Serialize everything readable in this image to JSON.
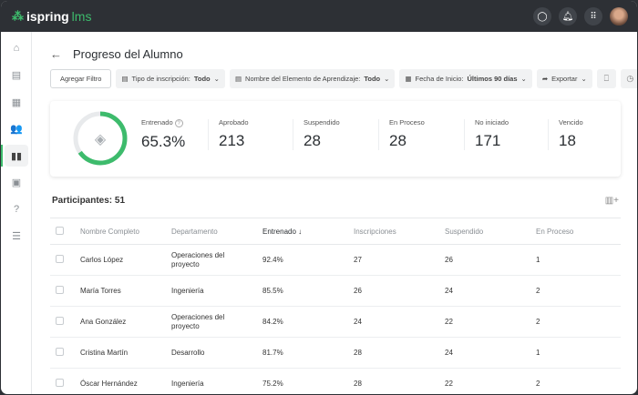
{
  "header": {
    "logo": "ispring",
    "logo_suffix": "lms",
    "icons": [
      "chat-icon",
      "bell-icon",
      "apps-grid-icon"
    ]
  },
  "sidebar": {
    "items": [
      {
        "icon": "home-icon",
        "glyph": "⌂"
      },
      {
        "icon": "book-icon",
        "glyph": "▤"
      },
      {
        "icon": "calendar-icon",
        "glyph": "▦"
      },
      {
        "icon": "users-icon",
        "glyph": "👥"
      },
      {
        "icon": "reports-icon",
        "glyph": "▮▮",
        "active": true
      },
      {
        "icon": "assignment-icon",
        "glyph": "▣"
      },
      {
        "icon": "help-icon",
        "glyph": "?"
      },
      {
        "icon": "settings-sliders-icon",
        "glyph": "☰"
      }
    ]
  },
  "page": {
    "title": "Progreso del Alumno"
  },
  "filters": {
    "add": "Agregar Filtro",
    "items": [
      {
        "label": "Tipo de inscripción:",
        "value": "Todo"
      },
      {
        "label": "Nombre del Elemento de Aprendizaje:",
        "value": "Todo"
      },
      {
        "label": "Fecha de Inicio:",
        "value": "Últimos 90 días"
      }
    ],
    "export": "Exportar"
  },
  "stats": {
    "trained_fraction": 0.653,
    "accent": "#3dbb6c",
    "items": [
      {
        "label": "Entrenado",
        "value": "65.3%"
      },
      {
        "label": "Aprobado",
        "value": "213"
      },
      {
        "label": "Suspendido",
        "value": "28"
      },
      {
        "label": "En Proceso",
        "value": "28"
      },
      {
        "label": "No iniciado",
        "value": "171"
      },
      {
        "label": "Vencido",
        "value": "18"
      }
    ]
  },
  "participants": {
    "title": "Participantes: 51"
  },
  "table": {
    "headers": [
      "Nombre Completo",
      "Departamento",
      "Entrenado ↓",
      "Inscripciones",
      "Suspendido",
      "En Proceso"
    ],
    "rows": [
      [
        "Carlos López",
        "Operaciones del proyecto",
        "92.4%",
        "27",
        "26",
        "1"
      ],
      [
        "María Torres",
        "Ingeniería",
        "85.5%",
        "26",
        "24",
        "2"
      ],
      [
        "Ana González",
        "Operaciones del proyecto",
        "84.2%",
        "24",
        "22",
        "2"
      ],
      [
        "Cristina Martín",
        "Desarrollo",
        "81.7%",
        "28",
        "24",
        "1"
      ],
      [
        "Óscar Hernández",
        "Ingeniería",
        "75.2%",
        "28",
        "22",
        "2"
      ]
    ]
  }
}
